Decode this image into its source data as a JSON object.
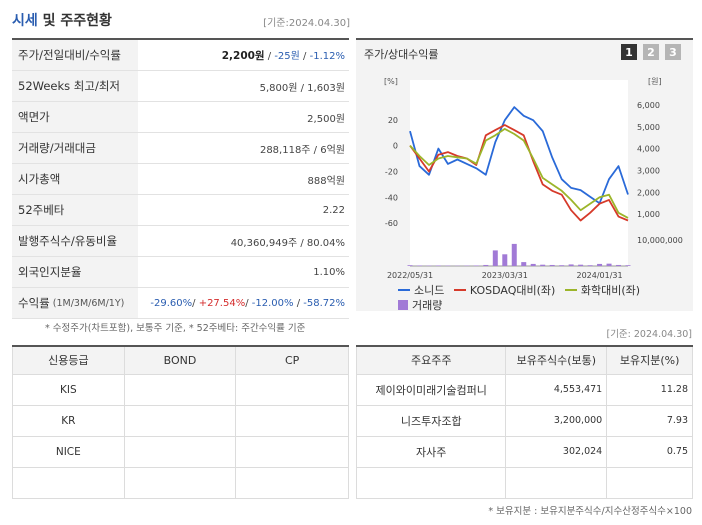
{
  "header": {
    "title_blue": "시세",
    "title_rest": " 및 주주현황",
    "date": "[기준:2024.04.30]"
  },
  "price_table": {
    "rows": [
      {
        "label": "주가/전일대비/수익률",
        "price": "2,200원",
        "change": "-25원",
        "rate": "-1.12%"
      },
      {
        "label": "52Weeks 최고/최저",
        "value": "5,800원 / 1,603원"
      },
      {
        "label": "액면가",
        "value": "2,500원"
      },
      {
        "label": "거래량/거래대금",
        "value": "288,118주 / 6억원"
      },
      {
        "label": "시가총액",
        "value": "888억원"
      },
      {
        "label": "52주베타",
        "value": "2.22"
      },
      {
        "label": "발행주식수/유동비율",
        "value": "40,360,949주 / 80.04%"
      },
      {
        "label": "외국인지분율",
        "value": "1.10%"
      },
      {
        "label": "수익률",
        "label_small": "(1M/3M/6M/1Y)",
        "r1": "-29.60%",
        "r2": "+27.54%",
        "r3": "-12.00%",
        "r4": "-58.72%"
      }
    ]
  },
  "note_left": "* 수정주가(차트포함), 보통주 기준, * 52주베타: 주간수익률 기준",
  "note_date2": "[기준: 2024.04.30]",
  "chart_panel": {
    "title": "주가/상대수익률",
    "tabs": [
      "1",
      "2",
      "3"
    ],
    "left_unit": "[%]",
    "right_unit": "[원]",
    "legend": [
      {
        "name": "소니드",
        "color": "#2a6ad8"
      },
      {
        "name": "KOSDAQ대비(좌)",
        "color": "#d63a2a"
      },
      {
        "name": "화학대비(좌)",
        "color": "#9cb52a"
      },
      {
        "name": "거래량",
        "color": "#a17ad6"
      }
    ]
  },
  "chart_data": {
    "type": "line",
    "x_ticks": [
      "2022/05/31",
      "2023/03/31",
      "2024/01/31"
    ],
    "y_left_ticks": [
      20,
      0,
      -20,
      -40,
      -60
    ],
    "y_left_range": [
      -70,
      40
    ],
    "y_right_ticks": [
      "6,000",
      "5,000",
      "4,000",
      "3,000",
      "2,000",
      "1,000"
    ],
    "y_right_range": [
      0,
      6500
    ],
    "volume_tick": "10,000,000",
    "volume_range": [
      0,
      10000000
    ],
    "x": [
      "2022-05",
      "2022-06",
      "2022-07",
      "2022-08",
      "2022-09",
      "2022-10",
      "2022-11",
      "2022-12",
      "2023-01",
      "2023-02",
      "2023-03",
      "2023-04",
      "2023-05",
      "2023-06",
      "2023-07",
      "2023-08",
      "2023-09",
      "2023-10",
      "2023-11",
      "2023-12",
      "2024-01",
      "2024-02",
      "2024-03",
      "2024-04"
    ],
    "series": [
      {
        "name": "소니드",
        "axis": "right",
        "color": "#2a6ad8",
        "values": [
          4800,
          3200,
          2800,
          4000,
          3300,
          3500,
          3300,
          3100,
          2800,
          4300,
          5300,
          5900,
          5500,
          5300,
          4800,
          3600,
          2600,
          2200,
          2100,
          1800,
          1500,
          2600,
          3200,
          1900
        ]
      },
      {
        "name": "KOSDAQ대비(좌)",
        "axis": "left",
        "color": "#d63a2a",
        "values": [
          0,
          -10,
          -20,
          -7,
          -5,
          -8,
          -10,
          -15,
          8,
          12,
          16,
          12,
          8,
          -12,
          -30,
          -35,
          -38,
          -50,
          -58,
          -52,
          -45,
          -42,
          -55,
          -58
        ]
      },
      {
        "name": "화학대비(좌)",
        "axis": "left",
        "color": "#9cb52a",
        "values": [
          0,
          -8,
          -15,
          -10,
          -8,
          -9,
          -10,
          -14,
          4,
          8,
          13,
          9,
          4,
          -10,
          -25,
          -30,
          -35,
          -42,
          -50,
          -45,
          -40,
          -38,
          -52,
          -56
        ]
      },
      {
        "name": "거래량",
        "axis": "volume",
        "color": "#a17ad6",
        "values": [
          300000,
          200000,
          150000,
          200000,
          150000,
          100000,
          150000,
          200000,
          400000,
          6000000,
          4500000,
          8500000,
          1500000,
          800000,
          500000,
          400000,
          300000,
          600000,
          500000,
          300000,
          800000,
          900000,
          400000,
          300000
        ]
      }
    ]
  },
  "credit_table": {
    "headers": [
      "신용등급",
      "BOND",
      "CP"
    ],
    "rows": [
      [
        "KIS",
        "",
        ""
      ],
      [
        "KR",
        "",
        ""
      ],
      [
        "NICE",
        "",
        ""
      ],
      [
        "",
        "",
        ""
      ]
    ]
  },
  "holders_table": {
    "headers": [
      "주요주주",
      "보유주식수(보통)",
      "보유지분(%)"
    ],
    "rows": [
      [
        "제이와이미래기술컴퍼니",
        "4,553,471",
        "11.28"
      ],
      [
        "니즈투자조합",
        "3,200,000",
        "7.93"
      ],
      [
        "자사주",
        "302,024",
        "0.75"
      ],
      [
        "",
        "",
        ""
      ]
    ]
  },
  "note_bottom": "* 보유지분 : 보유지분주식수/지수산정주식수×100"
}
